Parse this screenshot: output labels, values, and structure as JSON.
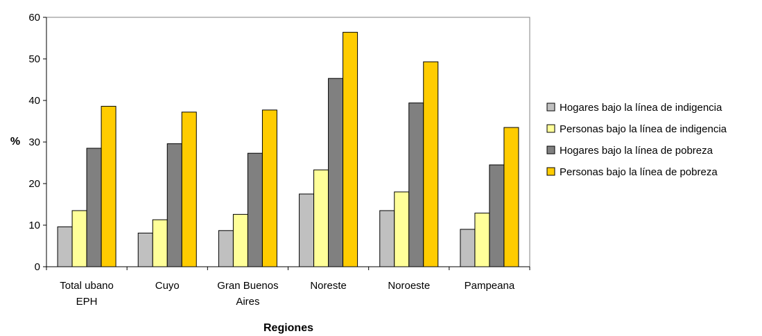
{
  "chart_data": {
    "type": "bar",
    "title": "",
    "xlabel": "Regiones",
    "ylabel": "%",
    "ylim": [
      0,
      60
    ],
    "yticks": [
      0,
      10,
      20,
      30,
      40,
      50,
      60
    ],
    "grid": false,
    "legend_position": "right",
    "categories": [
      [
        "Total ubano",
        "EPH"
      ],
      [
        "Cuyo"
      ],
      [
        "Gran Buenos",
        "Aires"
      ],
      [
        "Noreste"
      ],
      [
        "Noroeste"
      ],
      [
        "Pampeana"
      ]
    ],
    "series": [
      {
        "name": "Hogares bajo la línea de indigencia",
        "color": "#c0c0c0",
        "values": [
          9.6,
          8.1,
          8.7,
          17.5,
          13.5,
          9.0
        ]
      },
      {
        "name": "Personas bajo la línea de indigencia",
        "color": "#ffff99",
        "values": [
          13.5,
          11.3,
          12.6,
          23.3,
          18.0,
          12.9
        ]
      },
      {
        "name": "Hogares bajo la línea de pobreza",
        "color": "#808080",
        "values": [
          28.5,
          29.6,
          27.3,
          45.3,
          39.4,
          24.5
        ]
      },
      {
        "name": "Personas bajo la línea de pobreza",
        "color": "#ffcc00",
        "values": [
          38.6,
          37.2,
          37.7,
          56.4,
          49.3,
          33.5
        ]
      }
    ]
  }
}
